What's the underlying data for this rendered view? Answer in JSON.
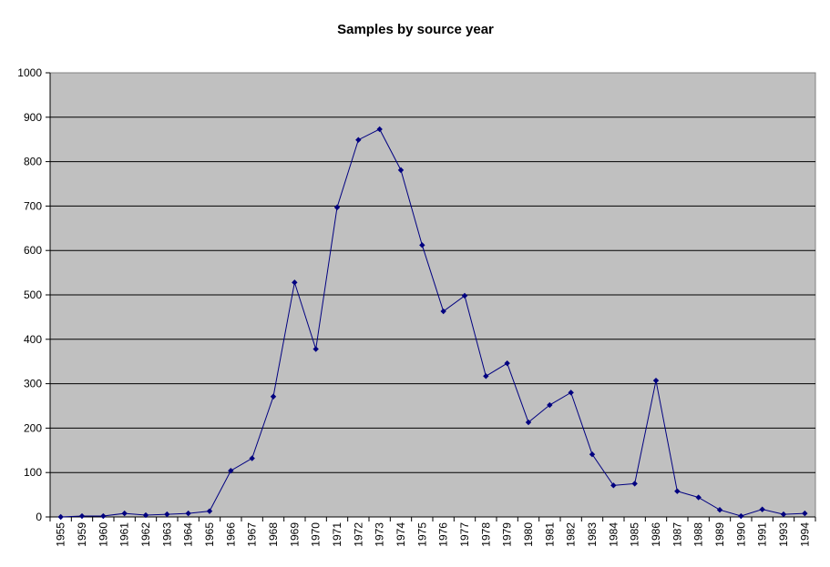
{
  "chart_data": {
    "type": "line",
    "title": "Samples by source year",
    "xlabel": "",
    "ylabel": "",
    "ylim": [
      0,
      1000
    ],
    "yticks": [
      0,
      100,
      200,
      300,
      400,
      500,
      600,
      700,
      800,
      900,
      1000
    ],
    "grid": true,
    "legend": "none",
    "categories": [
      "1955",
      "1959",
      "1960",
      "1961",
      "1962",
      "1963",
      "1964",
      "1965",
      "1966",
      "1967",
      "1968",
      "1969",
      "1970",
      "1971",
      "1972",
      "1973",
      "1974",
      "1975",
      "1976",
      "1977",
      "1978",
      "1979",
      "1980",
      "1981",
      "1982",
      "1983",
      "1984",
      "1985",
      "1986",
      "1987",
      "1988",
      "1989",
      "1990",
      "1991",
      "1993",
      "1994"
    ],
    "series": [
      {
        "values": [
          0,
          2,
          2,
          8,
          4,
          6,
          8,
          13,
          104,
          132,
          271,
          528,
          378,
          697,
          849,
          873,
          781,
          612,
          463,
          498,
          317,
          346,
          213,
          252,
          280,
          141,
          71,
          75,
          307,
          58,
          44,
          16,
          2,
          17,
          6,
          8
        ]
      }
    ],
    "colors": {
      "plot_background": "#c0c0c0",
      "gridline": "#000000",
      "series_line": "#000080",
      "marker": "#000080"
    }
  }
}
